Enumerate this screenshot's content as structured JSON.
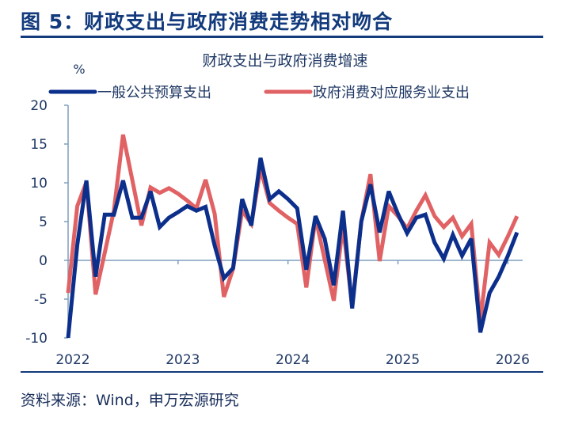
{
  "figure_title": "图 5：财政支出与政府消费走势相对吻合",
  "source": "资料来源：Wind，申万宏源研究",
  "colors": {
    "series_blue": "#0c2f8c",
    "series_red": "#e06264",
    "axis": "#7f9fbf",
    "title": "#123a7c"
  },
  "chart_data": {
    "type": "line",
    "title": "财政支出与政府消费增速",
    "ylabel": "%",
    "ylim": [
      -10,
      20
    ],
    "yticks": [
      "20",
      "15",
      "10",
      "5",
      "0",
      "-5",
      "-10"
    ],
    "xtick_labels": [
      "2022",
      "2023",
      "2024",
      "2025",
      "2026"
    ],
    "x_range": [
      "2022-01",
      "2026-02"
    ],
    "legend_position": "top",
    "grid": false,
    "x": [
      "2022-01",
      "2022-02",
      "2022-03",
      "2022-04",
      "2022-05",
      "2022-06",
      "2022-07",
      "2022-08",
      "2022-09",
      "2022-10",
      "2022-11",
      "2022-12",
      "2023-01",
      "2023-02",
      "2023-03",
      "2023-04",
      "2023-05",
      "2023-06",
      "2023-07",
      "2023-08",
      "2023-09",
      "2023-10",
      "2023-11",
      "2023-12",
      "2024-01",
      "2024-02",
      "2024-03",
      "2024-04",
      "2024-05",
      "2024-06",
      "2024-07",
      "2024-08",
      "2024-09",
      "2024-10",
      "2024-11",
      "2024-12",
      "2025-01",
      "2025-02",
      "2025-03",
      "2025-04",
      "2025-05",
      "2025-06",
      "2025-07",
      "2025-08",
      "2025-09",
      "2025-10",
      "2025-11",
      "2025-12",
      "2026-01",
      "2026-02"
    ],
    "series": [
      {
        "name": "一般公共预算支出",
        "color": "#0c2f8c",
        "values": [
          -10.0,
          2.0,
          10.3,
          -2.1,
          5.9,
          5.9,
          10.3,
          5.5,
          5.5,
          8.9,
          4.3,
          5.5,
          6.2,
          7.0,
          6.4,
          6.9,
          1.9,
          -2.3,
          -1.0,
          7.9,
          4.5,
          13.2,
          7.9,
          8.9,
          7.9,
          6.7,
          -1.2,
          5.7,
          2.8,
          -3.2,
          6.4,
          -6.2,
          5.0,
          9.8,
          3.6,
          8.9,
          6.0,
          3.5,
          5.5,
          5.9,
          2.3,
          0.2,
          3.3,
          0.6,
          2.8,
          -9.3,
          -4.2,
          -2.1,
          0.6,
          3.6
        ]
      },
      {
        "name": "政府消费对应服务业支出",
        "color": "#e06264",
        "values": [
          -4.2,
          7.0,
          10.1,
          -4.4,
          1.0,
          6.4,
          16.2,
          10.4,
          4.5,
          9.4,
          8.7,
          9.3,
          8.6,
          7.7,
          6.7,
          10.4,
          6.0,
          -4.7,
          -1.1,
          6.4,
          4.7,
          11.8,
          7.4,
          6.4,
          5.5,
          4.7,
          -3.5,
          5.5,
          0.1,
          -5.2,
          4.5,
          -5.9,
          5.0,
          11.1,
          -0.1,
          7.0,
          5.7,
          4.1,
          6.4,
          8.4,
          5.7,
          4.3,
          5.5,
          3.1,
          4.7,
          -7.8,
          2.3,
          0.7,
          3.1,
          5.7
        ]
      }
    ]
  }
}
